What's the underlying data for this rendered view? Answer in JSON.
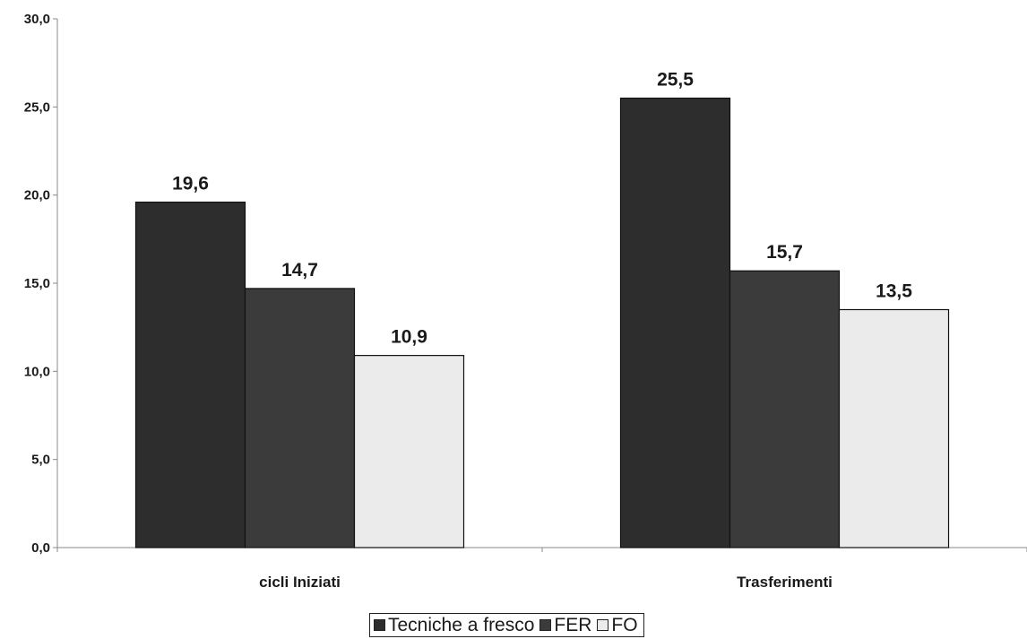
{
  "chart_data": {
    "type": "bar",
    "categories": [
      "cicli Iniziati",
      "Trasferimenti"
    ],
    "series": [
      {
        "name": "Tecniche a fresco",
        "values": [
          19.6,
          25.5
        ],
        "color": "#2d2d2d"
      },
      {
        "name": "FER",
        "values": [
          14.7,
          15.7
        ],
        "color": "#3b3b3b"
      },
      {
        "name": "FO",
        "values": [
          10.9,
          13.5
        ],
        "color": "#ebebeb"
      }
    ],
    "data_labels": [
      [
        "19,6",
        "14,7",
        "10,9"
      ],
      [
        "25,5",
        "15,7",
        "13,5"
      ]
    ],
    "ylim": [
      0,
      30
    ],
    "yticks": [
      0,
      5,
      10,
      15,
      20,
      25,
      30
    ],
    "ytick_labels": [
      "0,0",
      "5,0",
      "10,0",
      "15,0",
      "20,0",
      "25,0",
      "30,0"
    ],
    "grid": false,
    "legend_position": "bottom"
  }
}
